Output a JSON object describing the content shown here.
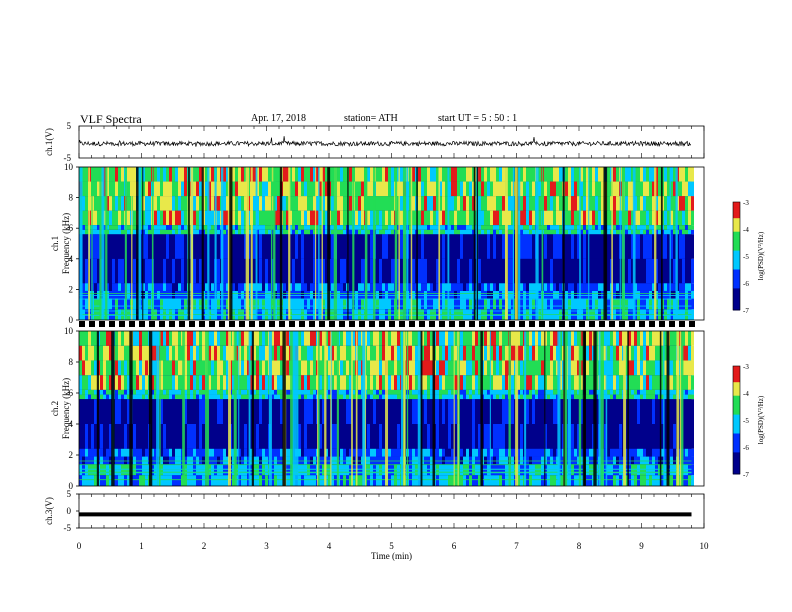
{
  "header": {
    "title": "VLF  Spectra",
    "date": "Apr. 17, 2018",
    "station": "station= ATH",
    "start": "start  UT  =   5  : 50 : 1"
  },
  "chart_data": [
    {
      "type": "line",
      "panel": "ch1-waveform",
      "ylabel": "ch.1(V)",
      "ylim": [
        -5,
        5
      ],
      "yticks": [
        "5",
        "-5"
      ],
      "xlim": [
        0,
        10
      ],
      "series": [
        {
          "description_values": "noisy waveform near -0.5 V",
          "mean": -0.5
        }
      ]
    },
    {
      "type": "heatmap",
      "panel": "ch1-spectrogram",
      "ylabel_line1": "ch.1",
      "ylabel_line2": "Frequency (kHz)",
      "ylim": [
        0,
        10
      ],
      "yticks": [
        "0",
        "2",
        "4",
        "6",
        "8",
        "10"
      ],
      "xlim": [
        0,
        9.8
      ],
      "colorbar": {
        "label": "log(PSD)(V²/Hz)",
        "range": [
          -7,
          -3
        ],
        "ticks": [
          "-3",
          "-4",
          "-5",
          "-6",
          "-7"
        ]
      }
    },
    {
      "type": "heatmap",
      "panel": "ch2-spectrogram",
      "ylabel_line1": "ch.2",
      "ylabel_line2": "Frequency (kHz)",
      "ylim": [
        0,
        10
      ],
      "yticks": [
        "0",
        "2",
        "4",
        "6",
        "8",
        "10"
      ],
      "xlim": [
        0,
        9.8
      ],
      "colorbar": {
        "label": "log(PSD)(V²/Hz)",
        "range": [
          -7,
          -3
        ],
        "ticks": [
          "-3",
          "-4",
          "-5",
          "-6",
          "-7"
        ]
      }
    },
    {
      "type": "line",
      "panel": "ch3-waveform",
      "ylabel": "ch.3(V)",
      "ylim": [
        -5,
        5
      ],
      "yticks": [
        "5",
        "0",
        "-5"
      ],
      "xlim": [
        0,
        10
      ],
      "series": [
        {
          "mean": -1.0
        }
      ]
    }
  ],
  "xaxis": {
    "label": "Time  (min)",
    "ticks": [
      "0",
      "1",
      "2",
      "3",
      "4",
      "5",
      "6",
      "7",
      "8",
      "9",
      "10"
    ],
    "range": [
      0,
      10
    ]
  },
  "colors": {
    "black": "#000000",
    "dark_blue": "#00008b",
    "blue": "#0030ff",
    "cyan": "#00c8ff",
    "green": "#22dd55",
    "yellow": "#e8e84a",
    "red": "#e31b1b"
  }
}
